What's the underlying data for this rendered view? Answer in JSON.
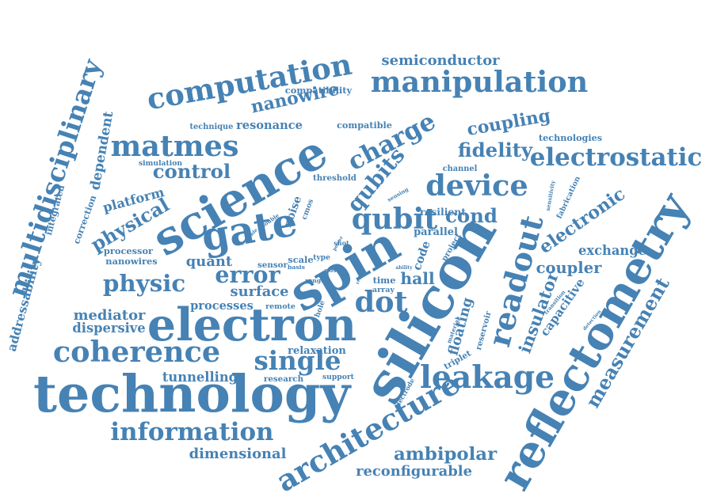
{
  "color": "#4682b4",
  "words": [
    "silicon",
    "spin",
    "technology",
    "science",
    "electron",
    "reflectometry",
    "gate",
    "architecture",
    "computation",
    "multidisciplinary",
    "manipulation",
    "matmes",
    "nanowire",
    "charge",
    "qubits",
    "readout",
    "information",
    "coherence",
    "leakage",
    "electrostatic",
    "coupling",
    "device",
    "dot",
    "physic",
    "physical",
    "control",
    "qubit",
    "fidelity",
    "error",
    "single",
    "measurement",
    "ambipolar",
    "reconfigurable",
    "electronic",
    "semiconductor",
    "addressability",
    "dimensional",
    "dependent",
    "insulator",
    "coupler",
    "floating",
    "capacitive",
    "exchange",
    "cond",
    "hall",
    "code",
    "surface",
    "mediator",
    "dispersive",
    "processes",
    "tunnelling",
    "platform",
    "noise",
    "cmos",
    "quant",
    "nanowires",
    "processor",
    "integrated",
    "correction",
    "resonance",
    "technique",
    "compatibility",
    "compatible",
    "technologies",
    "simulation",
    "threshold",
    "channel",
    "fabrication",
    "sensitivity",
    "resilient",
    "sensing",
    "parallel",
    "project",
    "transition",
    "detection",
    "reservoir",
    "triplet",
    "material",
    "relaxation",
    "research",
    "support",
    "electrode",
    "remote",
    "hole",
    "time",
    "array",
    "scale",
    "type",
    "sensor",
    "basis",
    "range",
    "double",
    "shot",
    "scalable",
    "ability",
    "post",
    "report",
    "power"
  ]
}
